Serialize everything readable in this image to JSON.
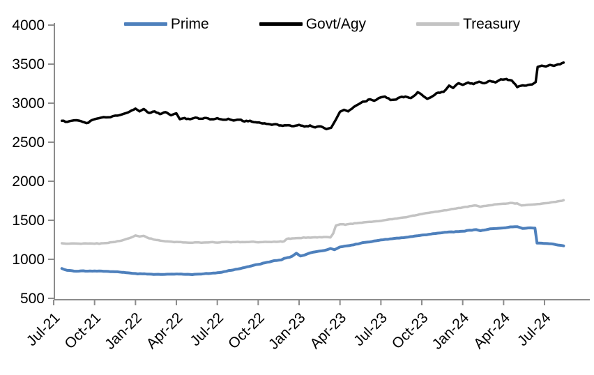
{
  "chart_data": {
    "type": "line",
    "title": "",
    "xlabel": "",
    "ylabel": "",
    "background": "#FFFFFF",
    "axis_color": "#8C8C8C",
    "text_color": "#000000",
    "grid": false,
    "legend_position": "top",
    "ylim": [
      500,
      4000
    ],
    "y_ticks": [
      4000,
      3500,
      3000,
      2500,
      2000,
      1500,
      1000,
      500
    ],
    "x_tick_labels": [
      "Jul-21",
      "Oct-21",
      "Jan-22",
      "Apr-22",
      "Jul-22",
      "Oct-22",
      "Jan-23",
      "Apr-23",
      "Jul-23",
      "Oct-23",
      "Jan-24",
      "Apr-24",
      "Jul-24"
    ],
    "x_unit": "months-since-Jul-21",
    "series": [
      {
        "name": "Prime",
        "color": "#4E80BC",
        "width": 4,
        "noise": 4,
        "points": [
          [
            0.6,
            882
          ],
          [
            0.8,
            868
          ],
          [
            1,
            858
          ],
          [
            1.5,
            848
          ],
          [
            2,
            852
          ],
          [
            2.5,
            848
          ],
          [
            3,
            851
          ],
          [
            3.5,
            849
          ],
          [
            4,
            845
          ],
          [
            4.5,
            840
          ],
          [
            5,
            833
          ],
          [
            5.5,
            826
          ],
          [
            6,
            818
          ],
          [
            6.5,
            813
          ],
          [
            7,
            810
          ],
          [
            7.5,
            807
          ],
          [
            8,
            806
          ],
          [
            8.5,
            809
          ],
          [
            9,
            812
          ],
          [
            9.5,
            808
          ],
          [
            10,
            806
          ],
          [
            10.5,
            809
          ],
          [
            11,
            814
          ],
          [
            11.5,
            820
          ],
          [
            12,
            828
          ],
          [
            12.5,
            842
          ],
          [
            13,
            858
          ],
          [
            13.5,
            875
          ],
          [
            14,
            895
          ],
          [
            14.5,
            915
          ],
          [
            15,
            935
          ],
          [
            15.5,
            955
          ],
          [
            16,
            975
          ],
          [
            16.5,
            988
          ],
          [
            16.7,
            992
          ],
          [
            16.9,
            1012
          ],
          [
            17.3,
            1025
          ],
          [
            17.5,
            1040
          ],
          [
            17.8,
            1078
          ],
          [
            18.1,
            1042
          ],
          [
            18.5,
            1062
          ],
          [
            19,
            1090
          ],
          [
            19.5,
            1105
          ],
          [
            20,
            1120
          ],
          [
            20.3,
            1138
          ],
          [
            20.6,
            1122
          ],
          [
            21,
            1158
          ],
          [
            21.5,
            1172
          ],
          [
            22,
            1185
          ],
          [
            22.5,
            1205
          ],
          [
            23,
            1220
          ],
          [
            23.5,
            1235
          ],
          [
            24,
            1248
          ],
          [
            24.5,
            1255
          ],
          [
            25,
            1268
          ],
          [
            25.5,
            1276
          ],
          [
            26,
            1285
          ],
          [
            26.5,
            1298
          ],
          [
            27,
            1310
          ],
          [
            27.5,
            1320
          ],
          [
            28,
            1330
          ],
          [
            28.5,
            1340
          ],
          [
            29,
            1350
          ],
          [
            29.5,
            1355
          ],
          [
            30,
            1360
          ],
          [
            30.5,
            1372
          ],
          [
            31,
            1380
          ],
          [
            31.3,
            1365
          ],
          [
            31.7,
            1378
          ],
          [
            32,
            1390
          ],
          [
            32.5,
            1395
          ],
          [
            33,
            1402
          ],
          [
            33.5,
            1415
          ],
          [
            34,
            1418
          ],
          [
            34.4,
            1395
          ],
          [
            34.8,
            1402
          ],
          [
            35.3,
            1400
          ],
          [
            35.45,
            1208
          ],
          [
            35.8,
            1206
          ],
          [
            36.2,
            1202
          ],
          [
            36.6,
            1196
          ],
          [
            37,
            1182
          ],
          [
            37.4,
            1172
          ]
        ]
      },
      {
        "name": "Govt/Agy",
        "color": "#000000",
        "width": 3.5,
        "noise": 9,
        "points": [
          [
            0.6,
            2775
          ],
          [
            1,
            2760
          ],
          [
            1.5,
            2780
          ],
          [
            2,
            2770
          ],
          [
            2.4,
            2745
          ],
          [
            3,
            2795
          ],
          [
            3.5,
            2815
          ],
          [
            4,
            2820
          ],
          [
            4.5,
            2840
          ],
          [
            5,
            2855
          ],
          [
            5.6,
            2895
          ],
          [
            6,
            2930
          ],
          [
            6.3,
            2895
          ],
          [
            6.6,
            2925
          ],
          [
            7,
            2875
          ],
          [
            7.4,
            2895
          ],
          [
            7.8,
            2860
          ],
          [
            8.2,
            2885
          ],
          [
            8.6,
            2845
          ],
          [
            9,
            2870
          ],
          [
            9.25,
            2795
          ],
          [
            9.6,
            2810
          ],
          [
            10,
            2795
          ],
          [
            10.4,
            2815
          ],
          [
            10.8,
            2800
          ],
          [
            11.2,
            2810
          ],
          [
            11.6,
            2795
          ],
          [
            12,
            2808
          ],
          [
            12.4,
            2788
          ],
          [
            12.8,
            2800
          ],
          [
            13.2,
            2778
          ],
          [
            13.6,
            2788
          ],
          [
            14,
            2765
          ],
          [
            14.4,
            2775
          ],
          [
            14.8,
            2755
          ],
          [
            15.2,
            2745
          ],
          [
            15.6,
            2735
          ],
          [
            16,
            2722
          ],
          [
            16.4,
            2728
          ],
          [
            16.8,
            2710
          ],
          [
            17.2,
            2718
          ],
          [
            17.6,
            2705
          ],
          [
            18,
            2722
          ],
          [
            18.4,
            2700
          ],
          [
            18.8,
            2715
          ],
          [
            19.2,
            2690
          ],
          [
            19.6,
            2702
          ],
          [
            20,
            2668
          ],
          [
            20.35,
            2685
          ],
          [
            20.7,
            2790
          ],
          [
            21,
            2890
          ],
          [
            21.3,
            2915
          ],
          [
            21.6,
            2895
          ],
          [
            22,
            2950
          ],
          [
            22.4,
            2990
          ],
          [
            22.8,
            3020
          ],
          [
            23.2,
            3050
          ],
          [
            23.5,
            3030
          ],
          [
            24,
            3075
          ],
          [
            24.3,
            3085
          ],
          [
            24.7,
            3040
          ],
          [
            25,
            3045
          ],
          [
            25.4,
            3075
          ],
          [
            25.8,
            3085
          ],
          [
            26.2,
            3065
          ],
          [
            26.7,
            3140
          ],
          [
            27.4,
            3055
          ],
          [
            27.8,
            3090
          ],
          [
            28.2,
            3135
          ],
          [
            28.6,
            3145
          ],
          [
            29,
            3225
          ],
          [
            29.3,
            3195
          ],
          [
            29.7,
            3255
          ],
          [
            30,
            3235
          ],
          [
            30.4,
            3265
          ],
          [
            30.8,
            3245
          ],
          [
            31.2,
            3275
          ],
          [
            31.6,
            3255
          ],
          [
            32,
            3285
          ],
          [
            32.4,
            3265
          ],
          [
            32.8,
            3305
          ],
          [
            33.2,
            3310
          ],
          [
            33.6,
            3290
          ],
          [
            34,
            3205
          ],
          [
            34.4,
            3228
          ],
          [
            34.8,
            3235
          ],
          [
            35.1,
            3240
          ],
          [
            35.35,
            3270
          ],
          [
            35.5,
            3465
          ],
          [
            35.8,
            3480
          ],
          [
            36.1,
            3470
          ],
          [
            36.4,
            3490
          ],
          [
            36.7,
            3478
          ],
          [
            37,
            3498
          ],
          [
            37.4,
            3520
          ]
        ]
      },
      {
        "name": "Treasury",
        "color": "#C3C3C3",
        "width": 3.5,
        "noise": 5,
        "points": [
          [
            0.6,
            1205
          ],
          [
            1,
            1200
          ],
          [
            1.5,
            1203
          ],
          [
            2,
            1198
          ],
          [
            2.5,
            1202
          ],
          [
            3,
            1200
          ],
          [
            3.5,
            1205
          ],
          [
            4,
            1210
          ],
          [
            4.5,
            1222
          ],
          [
            5,
            1240
          ],
          [
            5.5,
            1268
          ],
          [
            6,
            1305
          ],
          [
            6.3,
            1292
          ],
          [
            6.6,
            1300
          ],
          [
            7,
            1268
          ],
          [
            7.5,
            1248
          ],
          [
            8,
            1235
          ],
          [
            8.5,
            1228
          ],
          [
            9,
            1222
          ],
          [
            9.5,
            1215
          ],
          [
            10,
            1212
          ],
          [
            10.5,
            1217
          ],
          [
            11,
            1214
          ],
          [
            11.5,
            1219
          ],
          [
            12,
            1213
          ],
          [
            12.5,
            1221
          ],
          [
            13,
            1218
          ],
          [
            13.5,
            1224
          ],
          [
            14,
            1220
          ],
          [
            14.5,
            1225
          ],
          [
            15,
            1218
          ],
          [
            15.5,
            1223
          ],
          [
            16,
            1221
          ],
          [
            16.5,
            1225
          ],
          [
            16.9,
            1230
          ],
          [
            17.1,
            1262
          ],
          [
            17.5,
            1268
          ],
          [
            18,
            1272
          ],
          [
            18.5,
            1276
          ],
          [
            19,
            1280
          ],
          [
            19.5,
            1284
          ],
          [
            20,
            1286
          ],
          [
            20.3,
            1280
          ],
          [
            20.5,
            1330
          ],
          [
            20.7,
            1432
          ],
          [
            21,
            1448
          ],
          [
            21.4,
            1442
          ],
          [
            21.8,
            1455
          ],
          [
            22.2,
            1462
          ],
          [
            22.6,
            1468
          ],
          [
            23,
            1478
          ],
          [
            23.5,
            1485
          ],
          [
            24,
            1492
          ],
          [
            24.5,
            1508
          ],
          [
            25,
            1520
          ],
          [
            25.5,
            1532
          ],
          [
            26,
            1545
          ],
          [
            26.5,
            1562
          ],
          [
            27,
            1580
          ],
          [
            27.5,
            1595
          ],
          [
            28,
            1610
          ],
          [
            28.5,
            1622
          ],
          [
            29,
            1635
          ],
          [
            29.5,
            1650
          ],
          [
            30,
            1665
          ],
          [
            30.5,
            1680
          ],
          [
            31,
            1688
          ],
          [
            31.3,
            1672
          ],
          [
            31.7,
            1684
          ],
          [
            32,
            1692
          ],
          [
            32.5,
            1705
          ],
          [
            33,
            1712
          ],
          [
            33.5,
            1722
          ],
          [
            34,
            1716
          ],
          [
            34.3,
            1690
          ],
          [
            34.7,
            1696
          ],
          [
            35,
            1700
          ],
          [
            35.5,
            1707
          ],
          [
            36,
            1718
          ],
          [
            36.5,
            1730
          ],
          [
            37,
            1744
          ],
          [
            37.4,
            1757
          ]
        ]
      }
    ]
  }
}
